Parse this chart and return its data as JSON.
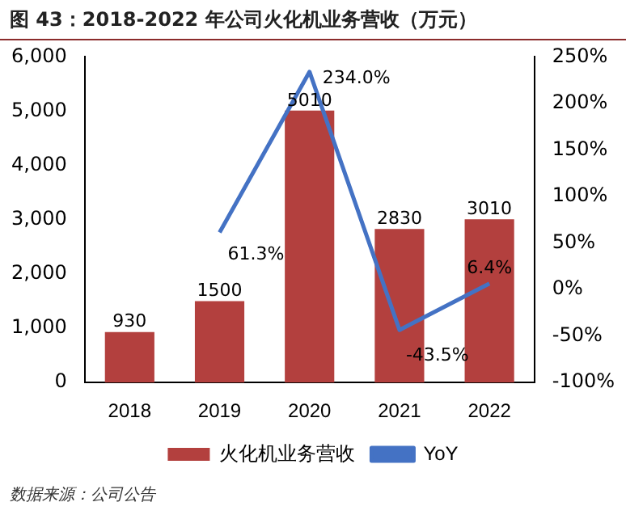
{
  "chart_data": {
    "type": "bar",
    "title": "图 43：2018-2022 年公司火化机业务营收（万元）",
    "categories": [
      "2018",
      "2019",
      "2020",
      "2021",
      "2022"
    ],
    "series": [
      {
        "name": "火化机业务营收",
        "color": "#b3403e",
        "values": [
          930,
          1500,
          5010,
          2830,
          3010
        ],
        "value_labels": [
          "930",
          "1500",
          "5010",
          "2830",
          "3010"
        ]
      },
      {
        "name": "YoY",
        "type": "line",
        "axis": "y2",
        "color": "#4472c4",
        "values": [
          null,
          61.3,
          234.0,
          -43.5,
          6.4
        ],
        "value_labels": [
          null,
          "61.3%",
          "234.0%",
          "-43.5%",
          "6.4%"
        ]
      }
    ],
    "ylim": [
      0,
      6000
    ],
    "yticks": [
      0,
      {
        "value": 1000,
        "label": "1,000"
      },
      {
        "value": 2000,
        "label": "2,000"
      },
      {
        "value": 3000,
        "label": "3,000"
      },
      {
        "value": 4000,
        "label": "4,000"
      },
      {
        "value": 5000,
        "label": "5,000"
      },
      {
        "value": 6000,
        "label": "6,000"
      }
    ],
    "y2lim": [
      -100,
      250
    ],
    "y2ticks": [
      {
        "value": -100,
        "label": "-100%"
      },
      {
        "value": -50,
        "label": "-50%"
      },
      {
        "value": 0,
        "label": "0%"
      },
      {
        "value": 50,
        "label": "50%"
      },
      {
        "value": 100,
        "label": "100%"
      },
      {
        "value": 150,
        "label": "150%"
      },
      {
        "value": 200,
        "label": "200%"
      },
      {
        "value": 250,
        "label": "250%"
      }
    ],
    "grid": false,
    "legend": "bottom",
    "marker": "none",
    "annotations": [
      "数据来源：公司公告"
    ]
  }
}
